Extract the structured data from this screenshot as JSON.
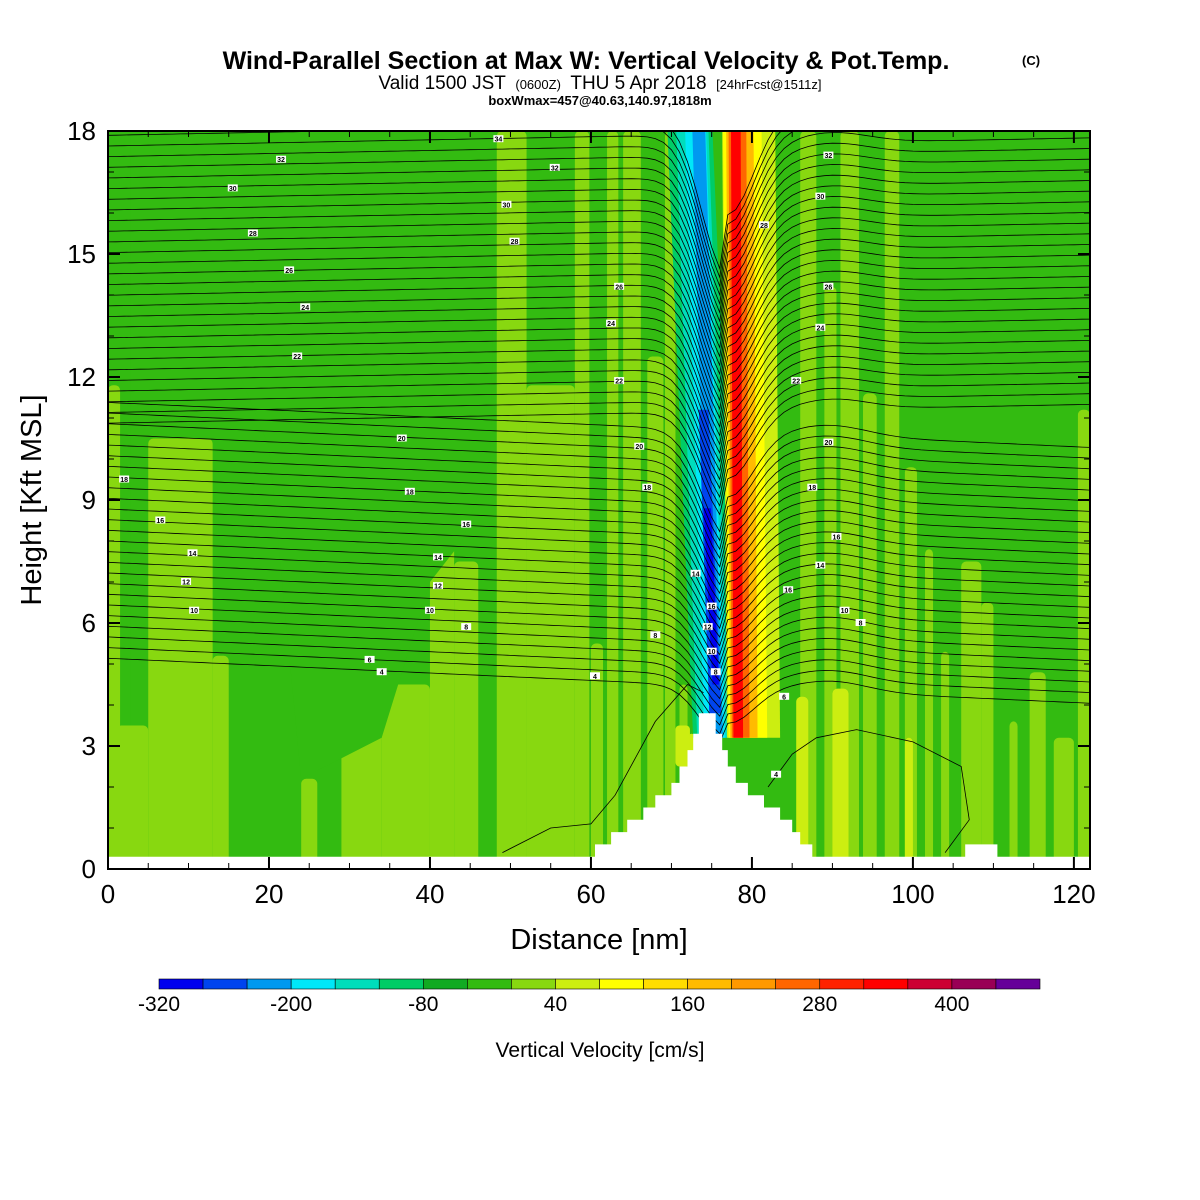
{
  "chart_data": {
    "type": "heatmap",
    "title": "Wind-Parallel Section at Max W: Vertical Velocity & Pot.Temp.",
    "title_mark": "(C)",
    "subtitle": {
      "valid": "Valid 1500 JST",
      "utc": "(0600Z)",
      "date": "THU 5 Apr 2018",
      "forecast": "[24hrFcst@1511z]"
    },
    "box_info": "boxWmax=457@40.63,140.97,1818m",
    "xlabel": "Distance [nm]",
    "ylabel": "Height [Kft MSL]",
    "xlim": [
      0,
      122
    ],
    "ylim": [
      0,
      18
    ],
    "x_ticks": [
      0,
      20,
      40,
      60,
      80,
      100,
      120
    ],
    "y_ticks": [
      0,
      3,
      6,
      9,
      12,
      15,
      18
    ],
    "colorbar": {
      "label": "Vertical Velocity [cm/s]",
      "levels": [
        -320,
        -280,
        -240,
        -200,
        -160,
        -120,
        -80,
        -40,
        0,
        40,
        80,
        120,
        160,
        200,
        240,
        280,
        320,
        360,
        400,
        440,
        480
      ],
      "tick_labels": [
        "-320",
        "-200",
        "-80",
        "40",
        "160",
        "280",
        "400"
      ],
      "colors": [
        "#0000ee",
        "#0044ee",
        "#0099f0",
        "#00e8f8",
        "#00ddbb",
        "#00cc66",
        "#11aa22",
        "#33bb11",
        "#88d810",
        "#ccee11",
        "#ffff00",
        "#ffdd00",
        "#ffbb00",
        "#ff9900",
        "#ff6600",
        "#ff2200",
        "#ff0000",
        "#cc0033",
        "#990055",
        "#660099"
      ]
    },
    "contour_field": "Potential temperature",
    "contour_labels": [
      {
        "x": 2,
        "y": 9.5,
        "label": "18"
      },
      {
        "x": 6.5,
        "y": 8.5,
        "label": "16"
      },
      {
        "x": 10.5,
        "y": 7.7,
        "label": "14"
      },
      {
        "x": 9.7,
        "y": 7.0,
        "label": "12"
      },
      {
        "x": 10.7,
        "y": 6.3,
        "label": "10"
      },
      {
        "x": 15.5,
        "y": 16.6,
        "label": "30"
      },
      {
        "x": 18,
        "y": 15.5,
        "label": "28"
      },
      {
        "x": 21.5,
        "y": 17.3,
        "label": "32"
      },
      {
        "x": 22.5,
        "y": 14.6,
        "label": "26"
      },
      {
        "x": 24.5,
        "y": 13.7,
        "label": "24"
      },
      {
        "x": 23.5,
        "y": 12.5,
        "label": "22"
      },
      {
        "x": 36.5,
        "y": 10.5,
        "label": "20"
      },
      {
        "x": 37.5,
        "y": 9.2,
        "label": "18"
      },
      {
        "x": 44.5,
        "y": 8.4,
        "label": "16"
      },
      {
        "x": 41,
        "y": 7.6,
        "label": "14"
      },
      {
        "x": 41,
        "y": 6.9,
        "label": "12"
      },
      {
        "x": 40,
        "y": 6.3,
        "label": "10"
      },
      {
        "x": 44.5,
        "y": 5.9,
        "label": "8"
      },
      {
        "x": 32.5,
        "y": 5.1,
        "label": "6"
      },
      {
        "x": 34,
        "y": 4.8,
        "label": "4"
      },
      {
        "x": 48.5,
        "y": 17.8,
        "label": "34"
      },
      {
        "x": 55.5,
        "y": 17.1,
        "label": "32"
      },
      {
        "x": 49.5,
        "y": 16.2,
        "label": "30"
      },
      {
        "x": 50.5,
        "y": 15.3,
        "label": "28"
      },
      {
        "x": 63.5,
        "y": 14.2,
        "label": "26"
      },
      {
        "x": 62.5,
        "y": 13.3,
        "label": "24"
      },
      {
        "x": 63.5,
        "y": 11.9,
        "label": "22"
      },
      {
        "x": 66,
        "y": 10.3,
        "label": "20"
      },
      {
        "x": 67,
        "y": 9.3,
        "label": "18"
      },
      {
        "x": 68,
        "y": 5.7,
        "label": "8"
      },
      {
        "x": 60.5,
        "y": 4.7,
        "label": "4"
      },
      {
        "x": 73,
        "y": 7.2,
        "label": "14"
      },
      {
        "x": 75,
        "y": 6.4,
        "label": "16"
      },
      {
        "x": 74.5,
        "y": 5.9,
        "label": "12"
      },
      {
        "x": 75,
        "y": 5.3,
        "label": "10"
      },
      {
        "x": 75.5,
        "y": 4.8,
        "label": "8"
      },
      {
        "x": 81.5,
        "y": 15.7,
        "label": "28"
      },
      {
        "x": 89.5,
        "y": 17.4,
        "label": "32"
      },
      {
        "x": 88.5,
        "y": 16.4,
        "label": "30"
      },
      {
        "x": 89.5,
        "y": 14.2,
        "label": "26"
      },
      {
        "x": 88.5,
        "y": 13.2,
        "label": "24"
      },
      {
        "x": 85.5,
        "y": 11.9,
        "label": "22"
      },
      {
        "x": 89.5,
        "y": 10.4,
        "label": "20"
      },
      {
        "x": 87.5,
        "y": 9.3,
        "label": "18"
      },
      {
        "x": 90.5,
        "y": 8.1,
        "label": "16"
      },
      {
        "x": 88.5,
        "y": 7.4,
        "label": "14"
      },
      {
        "x": 84.5,
        "y": 6.8,
        "label": "16"
      },
      {
        "x": 91.5,
        "y": 6.3,
        "label": "10"
      },
      {
        "x": 93.5,
        "y": 6.0,
        "label": "8"
      },
      {
        "x": 84,
        "y": 4.2,
        "label": "6"
      },
      {
        "x": 83,
        "y": 2.3,
        "label": "4"
      }
    ],
    "terrain": [
      [
        0,
        0.3
      ],
      [
        60.5,
        0.3
      ],
      [
        60.5,
        0.6
      ],
      [
        62.5,
        0.6
      ],
      [
        62.5,
        0.9
      ],
      [
        64.5,
        0.9
      ],
      [
        64.5,
        1.2
      ],
      [
        66.5,
        1.2
      ],
      [
        66.5,
        1.5
      ],
      [
        68,
        1.5
      ],
      [
        68,
        1.8
      ],
      [
        70,
        1.8
      ],
      [
        70,
        2.1
      ],
      [
        71,
        2.1
      ],
      [
        71,
        2.5
      ],
      [
        72,
        2.5
      ],
      [
        72,
        2.9
      ],
      [
        72.7,
        2.9
      ],
      [
        72.7,
        3.3
      ],
      [
        73.4,
        3.3
      ],
      [
        73.4,
        3.8
      ],
      [
        75.5,
        3.8
      ],
      [
        75.5,
        3.3
      ],
      [
        76.3,
        3.3
      ],
      [
        76.3,
        2.9
      ],
      [
        77,
        2.9
      ],
      [
        77,
        2.5
      ],
      [
        78,
        2.5
      ],
      [
        78,
        2.1
      ],
      [
        79.5,
        2.1
      ],
      [
        79.5,
        1.8
      ],
      [
        81.5,
        1.8
      ],
      [
        81.5,
        1.5
      ],
      [
        83.5,
        1.5
      ],
      [
        83.5,
        1.2
      ],
      [
        85,
        1.2
      ],
      [
        85,
        0.9
      ],
      [
        86,
        0.9
      ],
      [
        86,
        0.6
      ],
      [
        87.5,
        0.6
      ],
      [
        87.5,
        0.3
      ],
      [
        106.5,
        0.3
      ],
      [
        106.5,
        0.6
      ],
      [
        110.5,
        0.6
      ],
      [
        110.5,
        0.3
      ],
      [
        122,
        0.3
      ]
    ]
  }
}
